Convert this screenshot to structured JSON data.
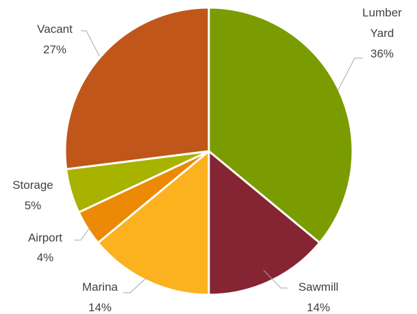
{
  "chart_data": {
    "type": "pie",
    "title": "",
    "start_angle_deg": 0,
    "direction": "clockwise",
    "legend": "none",
    "slices": [
      {
        "name": "Lumber Yard",
        "label_lines": [
          "Lumber",
          "Yard"
        ],
        "value": 36,
        "pct_label": "36%",
        "color": "#7a9c00"
      },
      {
        "name": "Sawmill",
        "label_lines": [
          "Sawmill"
        ],
        "value": 14,
        "pct_label": "14%",
        "color": "#852432"
      },
      {
        "name": "Marina",
        "label_lines": [
          "Marina"
        ],
        "value": 14,
        "pct_label": "14%",
        "color": "#fbb21e"
      },
      {
        "name": "Airport",
        "label_lines": [
          "Airport"
        ],
        "value": 4,
        "pct_label": "4%",
        "color": "#ec8a05"
      },
      {
        "name": "Storage",
        "label_lines": [
          "Storage"
        ],
        "value": 5,
        "pct_label": "5%",
        "color": "#a8b300"
      },
      {
        "name": "Vacant",
        "label_lines": [
          "Vacant"
        ],
        "value": 27,
        "pct_label": "27%",
        "color": "#c0561a"
      }
    ]
  }
}
